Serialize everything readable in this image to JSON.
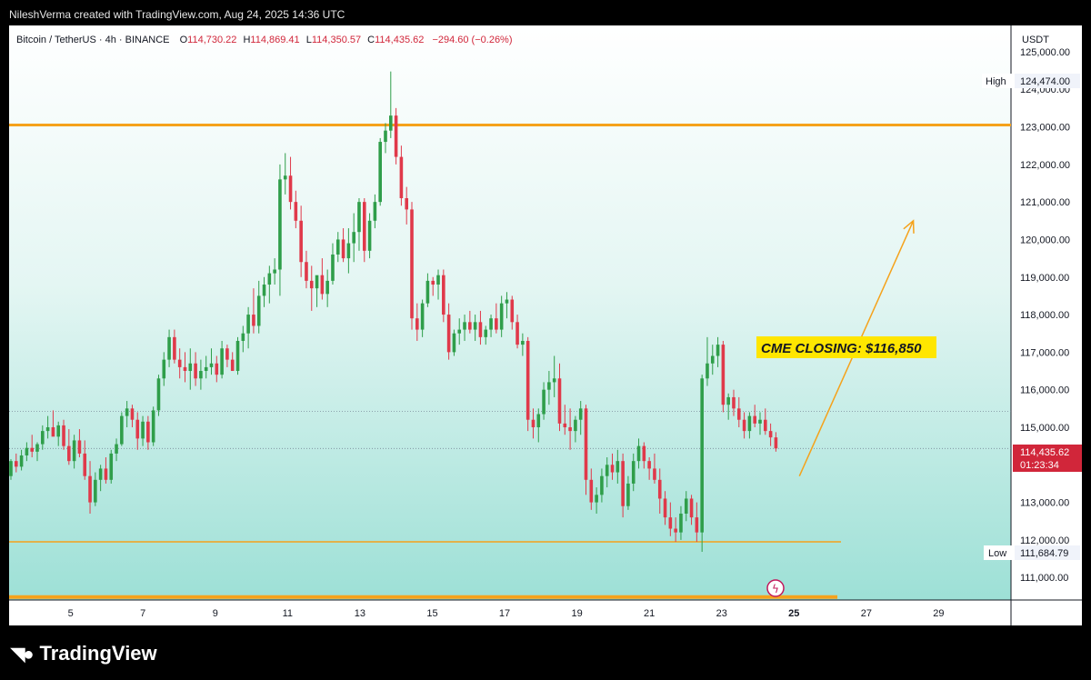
{
  "header": {
    "credit": "NileshVerma created with TradingView.com, Aug 24, 2025 14:36 UTC"
  },
  "legend": {
    "symbol": "Bitcoin / TetherUS · 4h · BINANCE",
    "o_label": "O",
    "o": "114,730.22",
    "h_label": "H",
    "h": "114,869.41",
    "l_label": "L",
    "l": "114,350.57",
    "c_label": "C",
    "c": "114,435.62",
    "change": "−294.60 (−0.26%)"
  },
  "price_axis": {
    "unit": "USDT",
    "high_label": "High",
    "high_value": "124,474.00",
    "low_label": "Low",
    "low_value": "111,684.79",
    "last_price": "114,435.62",
    "countdown": "01:23:34"
  },
  "annotation": {
    "text": "CME CLOSING: $116,850"
  },
  "footer": {
    "brand": "TradingView"
  },
  "colors": {
    "background_top": "#ffffff",
    "background_bottom": "#9de0d6",
    "up": "#2f9e4a",
    "down": "#e0394a",
    "level_line": "#f5a21b",
    "annotation_bg": "#ffe600",
    "last_price_bg": "#d1263a"
  },
  "chart_data": {
    "type": "candlestick",
    "x_ticks": [
      "5",
      "7",
      "9",
      "11",
      "13",
      "15",
      "17",
      "19",
      "21",
      "23",
      "25",
      "27",
      "29"
    ],
    "y_ticks": [
      "125,000.00",
      "124,000.00",
      "123,000.00",
      "122,000.00",
      "121,000.00",
      "120,000.00",
      "119,000.00",
      "118,000.00",
      "117,000.00",
      "116,000.00",
      "115,000.00",
      "113,000.00",
      "112,000.00",
      "111,000.00"
    ],
    "ylim": [
      110400,
      125700
    ],
    "xlim": [
      3.3,
      31
    ],
    "levels": [
      {
        "price": 123050,
        "from": 3.3,
        "to": 31,
        "width": 3
      },
      {
        "price": 111950,
        "from": 3.3,
        "to": 26.3,
        "width": 1.5
      },
      {
        "price": 110480,
        "from": 3.3,
        "to": 26.2,
        "width": 4
      }
    ],
    "dotted_levels": [
      115420,
      114435
    ],
    "arrow": {
      "from": [
        25.15,
        113700
      ],
      "to": [
        28.3,
        120500
      ]
    },
    "candles": [
      [
        113700,
        114150,
        113600,
        114100
      ],
      [
        114100,
        114300,
        113800,
        113950
      ],
      [
        113950,
        114400,
        113850,
        114250
      ],
      [
        114250,
        114600,
        114100,
        114450
      ],
      [
        114450,
        114800,
        114200,
        114350
      ],
      [
        114350,
        114600,
        114100,
        114550
      ],
      [
        114550,
        115050,
        114400,
        114900
      ],
      [
        114900,
        115300,
        114700,
        115000
      ],
      [
        115000,
        115450,
        114800,
        114750
      ],
      [
        114750,
        115150,
        114500,
        115050
      ],
      [
        115050,
        115200,
        114400,
        114500
      ],
      [
        114500,
        114950,
        114000,
        114100
      ],
      [
        114100,
        114800,
        113900,
        114650
      ],
      [
        114650,
        114950,
        114200,
        114300
      ],
      [
        114300,
        114650,
        113600,
        113700
      ],
      [
        113700,
        114100,
        112700,
        113000
      ],
      [
        113000,
        113800,
        112900,
        113600
      ],
      [
        113600,
        114000,
        113300,
        113900
      ],
      [
        113900,
        114200,
        113500,
        113600
      ],
      [
        113600,
        114400,
        113500,
        114300
      ],
      [
        114300,
        114700,
        114100,
        114550
      ],
      [
        114550,
        115400,
        114500,
        115300
      ],
      [
        115300,
        115700,
        115000,
        115500
      ],
      [
        115500,
        115600,
        115000,
        115200
      ],
      [
        115200,
        115400,
        114400,
        114700
      ],
      [
        114700,
        115300,
        114500,
        115150
      ],
      [
        115150,
        115300,
        114400,
        114600
      ],
      [
        114600,
        115550,
        114500,
        115450
      ],
      [
        115450,
        116400,
        115300,
        116300
      ],
      [
        116300,
        117000,
        116100,
        116800
      ],
      [
        116800,
        117600,
        116600,
        117400
      ],
      [
        117400,
        117600,
        116700,
        116800
      ],
      [
        116800,
        117100,
        116300,
        116600
      ],
      [
        116600,
        117000,
        116200,
        116500
      ],
      [
        116500,
        117100,
        116000,
        116700
      ],
      [
        116700,
        117000,
        116100,
        116300
      ],
      [
        116300,
        116800,
        116000,
        116500
      ],
      [
        116500,
        116900,
        116300,
        116600
      ],
      [
        116600,
        117100,
        116400,
        116700
      ],
      [
        116700,
        116900,
        116200,
        116400
      ],
      [
        116400,
        117300,
        116300,
        117100
      ],
      [
        117100,
        117200,
        116600,
        116800
      ],
      [
        116800,
        117000,
        116500,
        116500
      ],
      [
        116500,
        117400,
        116400,
        117300
      ],
      [
        117300,
        117700,
        117000,
        117500
      ],
      [
        117500,
        118200,
        117100,
        118000
      ],
      [
        118000,
        118700,
        117500,
        117700
      ],
      [
        117700,
        118900,
        117500,
        118500
      ],
      [
        118500,
        119000,
        118200,
        118800
      ],
      [
        118800,
        119300,
        118300,
        119100
      ],
      [
        119100,
        119500,
        118800,
        119200
      ],
      [
        119200,
        122000,
        118500,
        121600
      ],
      [
        121600,
        122300,
        121200,
        121700
      ],
      [
        121700,
        122200,
        120800,
        121000
      ],
      [
        121000,
        121300,
        120300,
        120500
      ],
      [
        120500,
        120900,
        119000,
        119400
      ],
      [
        119400,
        119700,
        118700,
        118900
      ],
      [
        118900,
        119300,
        118100,
        118700
      ],
      [
        118700,
        119000,
        118200,
        119050
      ],
      [
        119050,
        119500,
        118400,
        118550
      ],
      [
        118550,
        119200,
        118200,
        118900
      ],
      [
        118900,
        119900,
        118800,
        119600
      ],
      [
        119600,
        120200,
        119400,
        120000
      ],
      [
        120000,
        120300,
        119400,
        119500
      ],
      [
        119500,
        120300,
        119100,
        119900
      ],
      [
        119900,
        120700,
        119400,
        120200
      ],
      [
        120200,
        121100,
        119700,
        121000
      ],
      [
        121000,
        121100,
        119400,
        119700
      ],
      [
        119700,
        120700,
        119500,
        120500
      ],
      [
        120500,
        121200,
        120300,
        121000
      ],
      [
        121000,
        122700,
        120900,
        122600
      ],
      [
        122600,
        123100,
        122300,
        122900
      ],
      [
        122900,
        124474,
        122700,
        123300
      ],
      [
        123300,
        123500,
        122000,
        122200
      ],
      [
        122200,
        122500,
        120900,
        121100
      ],
      [
        121100,
        121400,
        120400,
        120800
      ],
      [
        120800,
        121000,
        117600,
        117900
      ],
      [
        117900,
        118300,
        117300,
        117600
      ],
      [
        117600,
        118400,
        117400,
        118300
      ],
      [
        118300,
        119100,
        118200,
        118900
      ],
      [
        118900,
        119000,
        118500,
        118800
      ],
      [
        118800,
        119200,
        118400,
        119050
      ],
      [
        119050,
        119200,
        117800,
        118000
      ],
      [
        118000,
        118300,
        116800,
        117000
      ],
      [
        117000,
        117600,
        116900,
        117500
      ],
      [
        117500,
        117900,
        117200,
        117600
      ],
      [
        117600,
        118000,
        117300,
        117800
      ],
      [
        117800,
        118100,
        117500,
        117600
      ],
      [
        117600,
        118000,
        117300,
        117800
      ],
      [
        117800,
        118100,
        117200,
        117400
      ],
      [
        117400,
        117700,
        117200,
        117600
      ],
      [
        117600,
        118000,
        117400,
        117900
      ],
      [
        117900,
        118300,
        117500,
        117600
      ],
      [
        117600,
        118500,
        117400,
        118300
      ],
      [
        118300,
        118600,
        117900,
        118400
      ],
      [
        118400,
        118500,
        117600,
        117800
      ],
      [
        117800,
        118000,
        117100,
        117200
      ],
      [
        117200,
        117500,
        116900,
        117300
      ],
      [
        117300,
        117400,
        114900,
        115200
      ],
      [
        115200,
        115500,
        114700,
        115000
      ],
      [
        115000,
        115500,
        114600,
        115350
      ],
      [
        115350,
        116200,
        115200,
        116000
      ],
      [
        116000,
        116500,
        115600,
        116200
      ],
      [
        116200,
        116900,
        115800,
        116300
      ],
      [
        116300,
        116700,
        114900,
        115100
      ],
      [
        115100,
        115600,
        114800,
        115000
      ],
      [
        115000,
        115500,
        114400,
        114900
      ],
      [
        114900,
        115300,
        114600,
        115200
      ],
      [
        115200,
        115700,
        114800,
        115500
      ],
      [
        115500,
        115600,
        113200,
        113600
      ],
      [
        113600,
        113900,
        112800,
        113000
      ],
      [
        113000,
        113400,
        112700,
        113200
      ],
      [
        113200,
        113900,
        113000,
        113700
      ],
      [
        113700,
        114200,
        113400,
        114000
      ],
      [
        114000,
        114300,
        113600,
        113800
      ],
      [
        113800,
        114400,
        113500,
        114100
      ],
      [
        114100,
        114300,
        112600,
        112900
      ],
      [
        112900,
        113700,
        112800,
        113500
      ],
      [
        113500,
        114300,
        113300,
        114100
      ],
      [
        114100,
        114700,
        113900,
        114500
      ],
      [
        114500,
        114600,
        113900,
        114100
      ],
      [
        114100,
        114200,
        113600,
        113900
      ],
      [
        113900,
        114300,
        113500,
        113600
      ],
      [
        113600,
        113900,
        112700,
        113100
      ],
      [
        113100,
        113300,
        112400,
        112600
      ],
      [
        112600,
        113000,
        112100,
        112300
      ],
      [
        112300,
        112600,
        111950,
        112200
      ],
      [
        112200,
        112900,
        112000,
        112700
      ],
      [
        112700,
        113300,
        112500,
        113100
      ],
      [
        113100,
        113200,
        112400,
        112600
      ],
      [
        112600,
        113000,
        111950,
        112200
      ],
      [
        112200,
        116400,
        111684,
        116300
      ],
      [
        116300,
        117400,
        116100,
        116700
      ],
      [
        116700,
        117200,
        116400,
        116900
      ],
      [
        116900,
        117400,
        116600,
        117200
      ],
      [
        117200,
        117300,
        115400,
        115600
      ],
      [
        115600,
        115900,
        115200,
        115800
      ],
      [
        115800,
        116000,
        115300,
        115500
      ],
      [
        115500,
        115800,
        115000,
        115200
      ],
      [
        115200,
        115400,
        114700,
        114900
      ],
      [
        114900,
        115400,
        114700,
        115300
      ],
      [
        115300,
        115600,
        115000,
        115100
      ],
      [
        115100,
        115400,
        114800,
        115200
      ],
      [
        115200,
        115500,
        114800,
        114900
      ],
      [
        114900,
        115100,
        114500,
        114730
      ],
      [
        114730,
        114870,
        114350,
        114436
      ]
    ]
  }
}
